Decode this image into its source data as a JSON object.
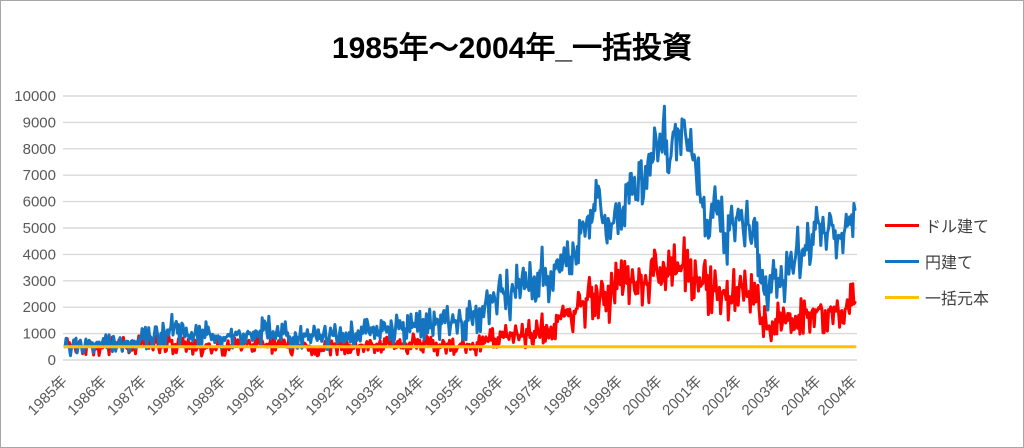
{
  "title": "1985年〜2004年_一括投資",
  "colors": {
    "series_dollar": "#fe0000",
    "series_yen": "#1574bf",
    "series_principal": "#ffc000",
    "gridline": "#d9d9d9",
    "axis_text": "#595959",
    "legend_text": "#404040",
    "frame_border": "#a6a6a6",
    "title_text": "#000000"
  },
  "legend": {
    "items": [
      {
        "label": "ドル建て",
        "color": "#fe0000"
      },
      {
        "label": "円建て",
        "color": "#1574bf"
      },
      {
        "label": "一括元本",
        "color": "#ffc000"
      }
    ]
  },
  "chart_data": {
    "type": "line",
    "title": "1985年〜2004年_一括投資",
    "xlabel": "",
    "ylabel": "",
    "ylim": [
      0,
      10000
    ],
    "y_ticks": [
      0,
      1000,
      2000,
      3000,
      4000,
      5000,
      6000,
      7000,
      8000,
      9000,
      10000
    ],
    "grid": "horizontal",
    "legend_position": "right",
    "x_unit": "monthly, Jan 1985 - Dec 2004 (240 points)",
    "x_tick_labels": [
      "1985年",
      "1986年",
      "1987年",
      "1988年",
      "1989年",
      "1990年",
      "1991年",
      "1992年",
      "1993年",
      "1994年",
      "1995年",
      "1996年",
      "1997年",
      "1998年",
      "1999年",
      "2000年",
      "2001年",
      "2002年",
      "2003年",
      "2004年",
      "2004年"
    ],
    "series": [
      {
        "name": "ドル建て",
        "color": "#fe0000",
        "values": [
          500,
          498,
          495,
          500,
          505,
          502,
          508,
          512,
          510,
          515,
          520,
          530,
          545,
          555,
          560,
          550,
          555,
          560,
          545,
          550,
          555,
          560,
          565,
          575,
          590,
          610,
          630,
          650,
          665,
          680,
          700,
          725,
          740,
          560,
          510,
          520,
          500,
          490,
          480,
          485,
          475,
          470,
          465,
          475,
          480,
          470,
          480,
          490,
          510,
          525,
          540,
          555,
          565,
          580,
          590,
          600,
          595,
          590,
          600,
          605,
          590,
          600,
          610,
          605,
          600,
          580,
          560,
          500,
          470,
          460,
          480,
          500,
          520,
          540,
          530,
          490,
          430,
          450,
          470,
          490,
          510,
          520,
          530,
          540,
          550,
          560,
          570,
          560,
          550,
          545,
          555,
          565,
          570,
          560,
          565,
          575,
          580,
          590,
          600,
          595,
          605,
          610,
          605,
          615,
          610,
          620,
          615,
          625,
          610,
          590,
          570,
          550,
          535,
          525,
          515,
          510,
          505,
          500,
          500,
          505,
          500,
          505,
          510,
          520,
          530,
          560,
          600,
          660,
          700,
          750,
          800,
          850,
          880,
          900,
          910,
          930,
          950,
          940,
          900,
          920,
          960,
          1020,
          1090,
          1160,
          1290,
          1230,
          1160,
          1250,
          1350,
          1450,
          1560,
          1660,
          1910,
          1730,
          1850,
          1950,
          2040,
          2150,
          2280,
          2400,
          2500,
          2600,
          2450,
          2100,
          2040,
          2200,
          2500,
          2700,
          2850,
          2800,
          2900,
          3050,
          3000,
          2950,
          3050,
          2900,
          2850,
          3000,
          3200,
          3400,
          3500,
          3700,
          3450,
          3250,
          3500,
          3300,
          3550,
          3650,
          3500,
          3300,
          3100,
          3200,
          3120,
          2900,
          2670,
          2500,
          2800,
          2850,
          2750,
          2600,
          2290,
          2400,
          2550,
          2670,
          2790,
          2700,
          2750,
          2600,
          2400,
          2200,
          1910,
          1600,
          1540,
          1290,
          1450,
          1540,
          1450,
          1350,
          1400,
          1500,
          1570,
          1660,
          1700,
          1720,
          1750,
          1790,
          1850,
          1900,
          1980,
          1930,
          1870,
          1910,
          1880,
          1850,
          1830,
          1870,
          1920,
          1960,
          2080,
          2180
        ]
      },
      {
        "name": "円建て",
        "color": "#1574bf",
        "values": [
          500,
          498,
          505,
          510,
          508,
          515,
          520,
          518,
          525,
          535,
          545,
          560,
          620,
          640,
          655,
          660,
          650,
          670,
          700,
          710,
          705,
          720,
          735,
          760,
          800,
          830,
          870,
          920,
          960,
          1010,
          1070,
          1140,
          1230,
          1300,
          1020,
          950,
          960,
          930,
          910,
          930,
          950,
          970,
          990,
          970,
          950,
          920,
          890,
          870,
          860,
          880,
          900,
          920,
          950,
          970,
          990,
          1010,
          1030,
          1060,
          1080,
          1100,
          1120,
          1140,
          1110,
          1080,
          1050,
          1020,
          990,
          930,
          880,
          850,
          870,
          890,
          900,
          940,
          960,
          910,
          850,
          815,
          840,
          870,
          900,
          930,
          960,
          990,
          1010,
          1030,
          1040,
          1020,
          1000,
          980,
          1000,
          1020,
          1040,
          1060,
          1080,
          1090,
          1100,
          1140,
          1180,
          1220,
          1200,
          1180,
          1160,
          1180,
          1200,
          1230,
          1260,
          1300,
          1330,
          1300,
          1290,
          1310,
          1340,
          1360,
          1380,
          1410,
          1440,
          1470,
          1500,
          1460,
          1420,
          1450,
          1500,
          1560,
          1650,
          1780,
          1900,
          2040,
          2150,
          2250,
          2350,
          2500,
          2600,
          2520,
          2450,
          2550,
          2650,
          2750,
          2790,
          2700,
          2850,
          3000,
          3150,
          3290,
          3400,
          3250,
          3170,
          3350,
          3600,
          3800,
          3980,
          4250,
          4480,
          3900,
          4100,
          4300,
          4800,
          5100,
          5400,
          5670,
          5900,
          6160,
          5900,
          5290,
          4430,
          4600,
          5200,
          5500,
          5550,
          5800,
          6300,
          7060,
          6800,
          6420,
          6870,
          6160,
          6500,
          7000,
          7600,
          8180,
          8560,
          8970,
          8300,
          7550,
          8640,
          7580,
          8670,
          8860,
          8300,
          7920,
          7580,
          7000,
          6420,
          5790,
          5180,
          4700,
          5400,
          5670,
          5500,
          5200,
          4500,
          4920,
          5200,
          5370,
          5300,
          5200,
          5370,
          5100,
          4700,
          4300,
          3980,
          3400,
          3150,
          2780,
          3200,
          3420,
          3100,
          2850,
          2950,
          3250,
          3550,
          3900,
          4050,
          4150,
          4350,
          4540,
          4750,
          4950,
          5180,
          5000,
          4800,
          5000,
          5100,
          4900,
          4730,
          4800,
          5000,
          5200,
          5500,
          5700
        ]
      },
      {
        "name": "一括元本",
        "color": "#ffc000",
        "constant": 500,
        "points": 240
      }
    ]
  }
}
